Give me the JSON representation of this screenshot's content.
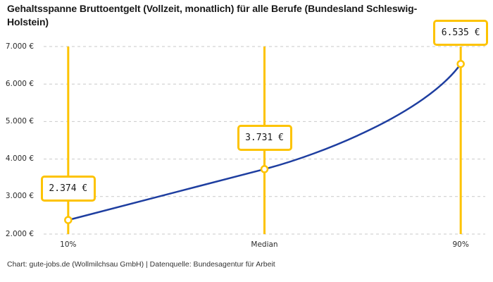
{
  "header": {
    "title": "Gehaltsspanne Bruttoentgelt (Vollzeit, monatlich) für alle Berufe (Bundesland Schleswig-Holstein)"
  },
  "footer": {
    "credit": "Chart: gute-jobs.de (Wollmilchsau GmbH) | Datenquelle: Bundesagentur für Arbeit"
  },
  "colors": {
    "accent_yellow": "#fdc300",
    "line_blue": "#1e3ea0",
    "grid_gray": "#c9c9c9",
    "text_dark": "#1a1a1a",
    "background": "#ffffff"
  },
  "chart_data": {
    "type": "line",
    "title": "Gehaltsspanne Bruttoentgelt (Vollzeit, monatlich) für alle Berufe (Bundesland Schleswig-Holstein)",
    "source": "Chart: gute-jobs.de (Wollmilchsau GmbH) | Datenquelle: Bundesagentur für Arbeit",
    "x_tick_labels": [
      "10%",
      "Median",
      "90%"
    ],
    "y_tick_labels": [
      "7.000 €",
      "6.000 €",
      "5.000 €",
      "4.000 €",
      "3.000 €",
      "2.000 €"
    ],
    "ylim": [
      2000,
      7000
    ],
    "y_step": 1000,
    "x_domain_percentile": [
      5,
      95
    ],
    "grid": "horizontal-dashed",
    "legend": "none",
    "currency": "EUR",
    "series": [
      {
        "name": "Bruttoentgelt",
        "points": [
          {
            "percentile": 10,
            "x_label": "10%",
            "value": 2374,
            "value_label": "2.374 €"
          },
          {
            "percentile": 50,
            "x_label": "Median",
            "value": 3731,
            "value_label": "3.731 €"
          },
          {
            "percentile": 90,
            "x_label": "90%",
            "value": 6535,
            "value_label": "6.535 €"
          }
        ]
      }
    ]
  }
}
